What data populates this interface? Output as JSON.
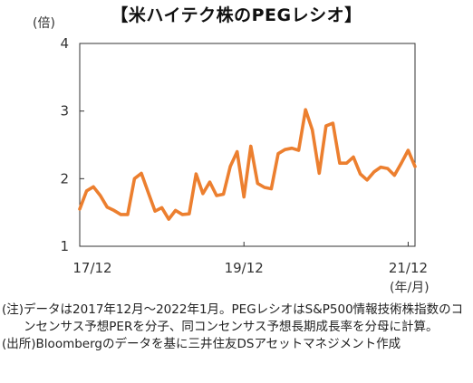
{
  "chart_data": {
    "type": "line",
    "title": "【米ハイテク株のPEGレシオ】",
    "ylabel": "(倍)",
    "xlabel": "(年/月)",
    "ylim": [
      1,
      4
    ],
    "yticks": [
      "1",
      "2",
      "3",
      "4"
    ],
    "xticks": [
      {
        "label": "17/12",
        "x": 0
      },
      {
        "label": "19/12",
        "x": 24
      },
      {
        "label": "21/12",
        "x": 48
      }
    ],
    "line_color": "#ec7f2f",
    "grid": false,
    "series": [
      {
        "name": "",
        "x": [
          0,
          1,
          2,
          3,
          4,
          5,
          6,
          7,
          8,
          9,
          10,
          11,
          12,
          13,
          14,
          15,
          16,
          17,
          18,
          19,
          20,
          21,
          22,
          23,
          24,
          25,
          26,
          27,
          28,
          29,
          30,
          31,
          32,
          33,
          34,
          35,
          36,
          37,
          38,
          39,
          40,
          41,
          42,
          43,
          44,
          45,
          46,
          47,
          48,
          49
        ],
        "values": [
          1.55,
          1.82,
          1.88,
          1.75,
          1.58,
          1.53,
          1.47,
          1.47,
          2.0,
          2.08,
          1.8,
          1.52,
          1.57,
          1.4,
          1.53,
          1.47,
          1.48,
          2.07,
          1.78,
          1.95,
          1.75,
          1.77,
          2.18,
          2.4,
          1.73,
          2.48,
          1.93,
          1.87,
          1.85,
          2.37,
          2.43,
          2.45,
          2.42,
          3.02,
          2.72,
          2.08,
          2.78,
          2.82,
          2.23,
          2.23,
          2.32,
          2.07,
          1.98,
          2.1,
          2.17,
          2.15,
          2.05,
          2.23,
          2.42,
          2.18
        ]
      }
    ]
  },
  "notes": [
    {
      "label": "(注)",
      "text": "データは2017年12月～2022年1月。PEGレシオはS&P500情報技術株指数のコンセンサス予想PERを分子、同コンセンサス予想長期成長率を分母に計算。"
    },
    {
      "label": "(出所)",
      "text": "Bloombergのデータを基に三井住友DSアセットマネジメント作成"
    }
  ]
}
